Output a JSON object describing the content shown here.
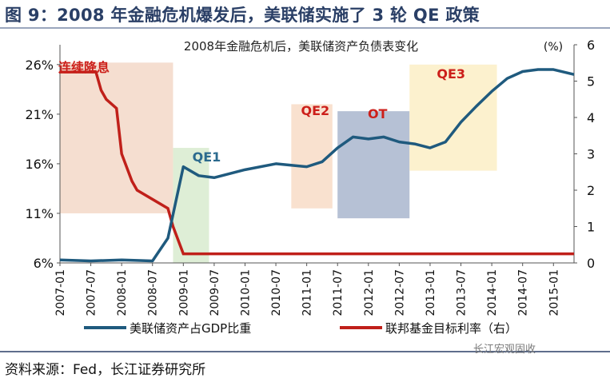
{
  "header": {
    "title": "图 9：2008 年金融危机爆发后，美联储实施了 3 轮 QE 政策"
  },
  "footer": {
    "source": "资料来源：Fed，长江证券研究所",
    "watermark": "长江宏观固收"
  },
  "chart_data": {
    "type": "line",
    "title": "2008年金融危机后，美联储资产负债表变化",
    "y_left": {
      "ticks": [
        "6%",
        "11%",
        "16%",
        "21%",
        "26%"
      ],
      "range": [
        6,
        28
      ]
    },
    "y_right": {
      "unit_label": "(%)",
      "ticks": [
        "0",
        "1",
        "2",
        "3",
        "4",
        "5",
        "6"
      ],
      "range": [
        0,
        6
      ]
    },
    "x_ticks": [
      "2007-01",
      "2007-07",
      "2008-01",
      "2008-07",
      "2009-01",
      "2009-07",
      "2010-01",
      "2010-07",
      "2011-01",
      "2011-07",
      "2012-01",
      "2012-07",
      "2013-01",
      "2013-07",
      "2014-01",
      "2014-07",
      "2015-01"
    ],
    "x_range": [
      "2007-01",
      "2015-05"
    ],
    "grid": false,
    "legend_position": "bottom",
    "series": [
      {
        "name": "美联储资产占GDP比重",
        "axis": "left",
        "color": "#1f5a7e",
        "points": [
          [
            "2007-01",
            6.3
          ],
          [
            "2007-07",
            6.2
          ],
          [
            "2008-01",
            6.3
          ],
          [
            "2008-07",
            6.2
          ],
          [
            "2008-10",
            8.5
          ],
          [
            "2009-01",
            15.7
          ],
          [
            "2009-04",
            14.8
          ],
          [
            "2009-07",
            14.6
          ],
          [
            "2010-01",
            15.4
          ],
          [
            "2010-07",
            16.0
          ],
          [
            "2011-01",
            15.7
          ],
          [
            "2011-04",
            16.2
          ],
          [
            "2011-07",
            17.6
          ],
          [
            "2011-10",
            18.7
          ],
          [
            "2012-01",
            18.5
          ],
          [
            "2012-04",
            18.7
          ],
          [
            "2012-07",
            18.2
          ],
          [
            "2012-10",
            18.0
          ],
          [
            "2013-01",
            17.6
          ],
          [
            "2013-04",
            18.2
          ],
          [
            "2013-07",
            20.2
          ],
          [
            "2013-10",
            21.8
          ],
          [
            "2014-01",
            23.3
          ],
          [
            "2014-04",
            24.6
          ],
          [
            "2014-07",
            25.3
          ],
          [
            "2014-10",
            25.5
          ],
          [
            "2015-01",
            25.5
          ],
          [
            "2015-05",
            25.0
          ]
        ]
      },
      {
        "name": "联邦基金目标利率（右）",
        "axis": "right",
        "color": "#c0201a",
        "points": [
          [
            "2007-01",
            5.25
          ],
          [
            "2007-08",
            5.25
          ],
          [
            "2007-09",
            4.75
          ],
          [
            "2007-10",
            4.5
          ],
          [
            "2007-12",
            4.25
          ],
          [
            "2008-01",
            3.0
          ],
          [
            "2008-03",
            2.25
          ],
          [
            "2008-04",
            2.0
          ],
          [
            "2008-10",
            1.5
          ],
          [
            "2008-11",
            1.0
          ],
          [
            "2009-01",
            0.25
          ],
          [
            "2015-05",
            0.25
          ]
        ]
      }
    ],
    "annotations": [
      {
        "label": "连续降息",
        "color": "#cc1f1a",
        "fill": "#f3d8c8",
        "x_start": "2007-01",
        "x_end": "2008-11",
        "y_low": 11.0,
        "y_high": 26.2
      },
      {
        "label": "QE1",
        "color": "#2b6a8e",
        "fill": "#d8ebcf",
        "x_start": "2008-11",
        "x_end": "2009-06",
        "y_low": 6.0,
        "y_high": 17.6
      },
      {
        "label": "QE2",
        "color": "#cc1f1a",
        "fill": "#f8dcc7",
        "x_start": "2010-10",
        "x_end": "2011-06",
        "y_low": 11.5,
        "y_high": 22.0
      },
      {
        "label": "OT",
        "color": "#cc1f1a",
        "fill": "#a9b6ce",
        "x_start": "2011-07",
        "x_end": "2012-09",
        "y_low": 10.5,
        "y_high": 21.3
      },
      {
        "label": "QE3",
        "color": "#cc1f1a",
        "fill": "#fbeec6",
        "x_start": "2012-09",
        "x_end": "2014-02",
        "y_low": 15.3,
        "y_high": 26.0
      }
    ]
  }
}
